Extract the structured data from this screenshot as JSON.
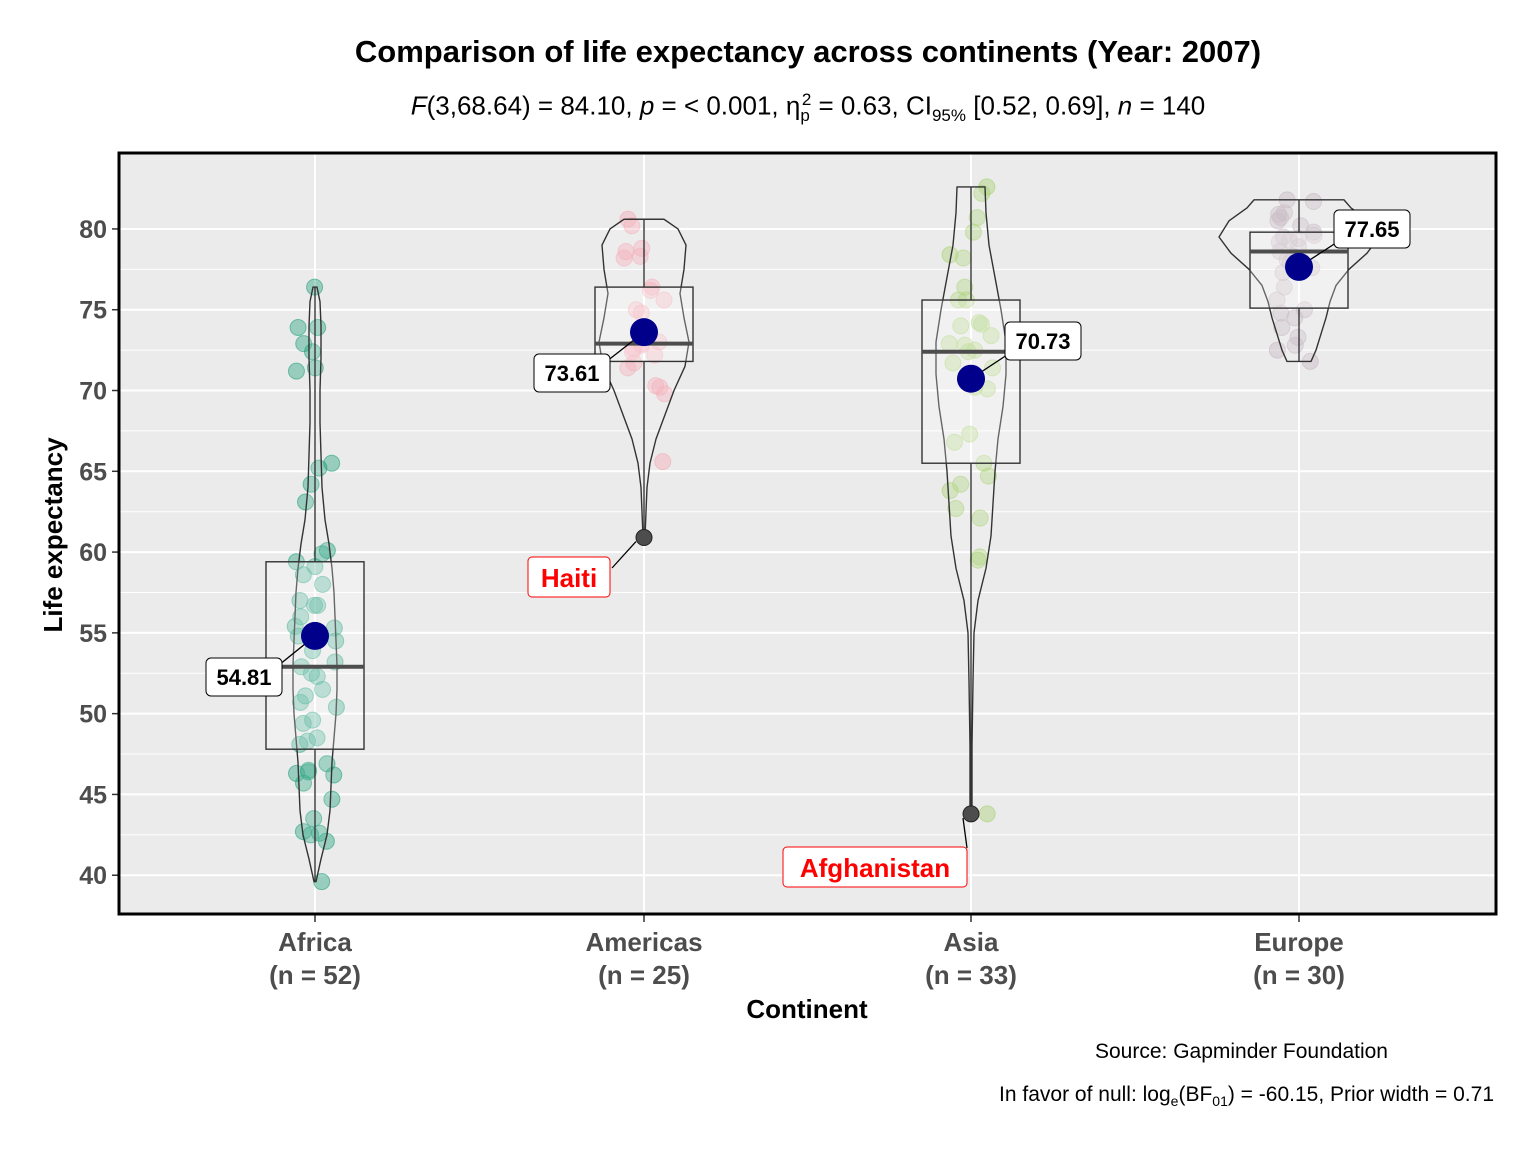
{
  "title": "Comparison of life expectancy across continents (Year: 2007)",
  "subtitle": {
    "f_label": "F",
    "f_df": "(3,68.64) = 84.10, ",
    "p_label": "p",
    "p_value": " = < 0.001, ",
    "eta": "η",
    "eta_sub": "p",
    "eta_sup": "2",
    "eta_value": " = 0.63, CI",
    "ci_sub": "95%",
    "ci_value": " [0.52, 0.69], ",
    "n_label": "n",
    "n_value": " = 140"
  },
  "caption": {
    "source": "Source: Gapminder Foundation",
    "bf_prefix": "In favor of null: log",
    "bf_base": "e",
    "bf_mid": "(BF",
    "bf_sub": "01",
    "bf_suffix": ") = -60.15, Prior width = 0.71"
  },
  "colors": {
    "panel": "#ebebeb",
    "mean_point": "#00008b",
    "outlier_label": "#ff0000",
    "Africa": "#1b9e77",
    "Americas": "#f4a6b2",
    "Asia": "#a6d06e",
    "Europe": "#c4b4bf"
  },
  "chart_data": {
    "type": "violin-box",
    "xlabel": "Continent",
    "ylabel": "Life expectancy",
    "ylim": [
      37.6,
      84.7
    ],
    "yticks": [
      40,
      45,
      50,
      55,
      60,
      65,
      70,
      75,
      80
    ],
    "grid": true,
    "groups": [
      {
        "name": "Africa",
        "tick": "Africa",
        "n_label": "(n = 52)",
        "mean": 54.81,
        "mean_label": "54.81",
        "q1": 47.8,
        "median": 52.9,
        "q3": 59.4,
        "whisker_low": 39.6,
        "whisker_high": 76.4,
        "points": [
          76.4,
          73.9,
          73.9,
          72.9,
          72.4,
          71.4,
          71.2,
          65.5,
          65.2,
          64.2,
          63.1,
          60.1,
          59.9,
          59.4,
          59.1,
          58.6,
          58.0,
          57.0,
          56.7,
          56.7,
          56.0,
          55.4,
          55.3,
          54.5,
          54.8,
          53.9,
          53.2,
          52.9,
          52.5,
          52.3,
          51.5,
          51.1,
          50.7,
          50.4,
          49.6,
          49.4,
          48.5,
          48.3,
          48.1,
          46.9,
          46.5,
          46.4,
          46.3,
          46.2,
          45.7,
          44.7,
          43.5,
          42.7,
          42.6,
          42.5,
          42.1,
          39.6
        ],
        "violin": [
          [
            39.6,
            1
          ],
          [
            41,
            6
          ],
          [
            42.5,
            12
          ],
          [
            44,
            15
          ],
          [
            45.5,
            16
          ],
          [
            47,
            17
          ],
          [
            48.5,
            19
          ],
          [
            50,
            21
          ],
          [
            51.5,
            22
          ],
          [
            53,
            22
          ],
          [
            54.5,
            21
          ],
          [
            56,
            20
          ],
          [
            57.5,
            19
          ],
          [
            59,
            17
          ],
          [
            60.5,
            14
          ],
          [
            62,
            10
          ],
          [
            64,
            7
          ],
          [
            66,
            6
          ],
          [
            68,
            5
          ],
          [
            70,
            5
          ],
          [
            72,
            6
          ],
          [
            74,
            6
          ],
          [
            75.5,
            5
          ],
          [
            76.4,
            2
          ]
        ]
      },
      {
        "name": "Americas",
        "tick": "Americas",
        "n_label": "(n = 25)",
        "mean": 73.61,
        "mean_label": "73.61",
        "outlier": 60.9,
        "outlier_label": "Haiti",
        "q1": 71.8,
        "median": 72.9,
        "q3": 76.4,
        "whisker_low": 60.9,
        "whisker_high": 80.6,
        "points": [
          80.6,
          80.2,
          78.8,
          78.6,
          78.2,
          78.3,
          76.4,
          76.2,
          75.6,
          75.0,
          74.8,
          73.7,
          73.4,
          73.0,
          72.9,
          72.8,
          72.6,
          72.4,
          72.2,
          71.4,
          71.7,
          70.3,
          70.2,
          69.8,
          65.6
        ],
        "violin": [
          [
            60.9,
            1
          ],
          [
            62.5,
            2
          ],
          [
            64,
            3
          ],
          [
            65.5,
            6
          ],
          [
            67,
            12
          ],
          [
            68.5,
            21
          ],
          [
            70,
            30
          ],
          [
            71.5,
            41
          ],
          [
            73,
            45
          ],
          [
            74.5,
            40
          ],
          [
            76,
            36
          ],
          [
            77.5,
            40
          ],
          [
            79,
            42
          ],
          [
            80,
            34
          ],
          [
            80.6,
            20
          ]
        ]
      },
      {
        "name": "Asia",
        "tick": "Asia",
        "n_label": "(n = 33)",
        "mean": 70.73,
        "mean_label": "70.73",
        "outlier": 43.8,
        "outlier_label": "Afghanistan",
        "q1": 65.5,
        "median": 72.4,
        "q3": 75.6,
        "whisker_low": 43.8,
        "whisker_high": 82.6,
        "points": [
          82.6,
          82.2,
          80.7,
          79.8,
          78.4,
          78.2,
          76.4,
          75.6,
          75.6,
          74.2,
          74.1,
          74.0,
          73.4,
          72.9,
          72.8,
          72.5,
          72.4,
          71.7,
          71.4,
          70.6,
          70.1,
          70.2,
          67.3,
          66.8,
          65.5,
          64.7,
          64.2,
          63.8,
          62.7,
          62.1,
          59.7,
          59.5,
          43.8
        ],
        "violin": [
          [
            43.8,
            1
          ],
          [
            48,
            1
          ],
          [
            52,
            2
          ],
          [
            55,
            3
          ],
          [
            57,
            7
          ],
          [
            59,
            15
          ],
          [
            61,
            20
          ],
          [
            63,
            22
          ],
          [
            65,
            24
          ],
          [
            67,
            27
          ],
          [
            69,
            32
          ],
          [
            71,
            35
          ],
          [
            73,
            35
          ],
          [
            75,
            30
          ],
          [
            77,
            24
          ],
          [
            79,
            18
          ],
          [
            81,
            15
          ],
          [
            82.6,
            14
          ]
        ]
      },
      {
        "name": "Europe",
        "tick": "Europe",
        "n_label": "(n = 30)",
        "mean": 77.65,
        "mean_label": "77.65",
        "q1": 75.1,
        "median": 78.6,
        "q3": 79.8,
        "whisker_low": 71.8,
        "whisker_high": 81.8,
        "points": [
          81.8,
          81.7,
          81.0,
          80.9,
          80.7,
          80.5,
          80.2,
          79.8,
          79.6,
          79.5,
          79.4,
          79.2,
          79.3,
          78.9,
          78.6,
          78.3,
          78.1,
          77.9,
          77.6,
          77.3,
          76.4,
          75.6,
          75.0,
          74.8,
          74.5,
          73.9,
          73.3,
          72.8,
          72.5,
          71.8
        ],
        "violin": [
          [
            71.8,
            12
          ],
          [
            72.5,
            17
          ],
          [
            73.5,
            22
          ],
          [
            74.5,
            27
          ],
          [
            75.5,
            31
          ],
          [
            76.5,
            37
          ],
          [
            77.5,
            50
          ],
          [
            78.5,
            68
          ],
          [
            79.5,
            80
          ],
          [
            80.5,
            70
          ],
          [
            81.3,
            52
          ],
          [
            81.8,
            45
          ]
        ]
      }
    ]
  }
}
